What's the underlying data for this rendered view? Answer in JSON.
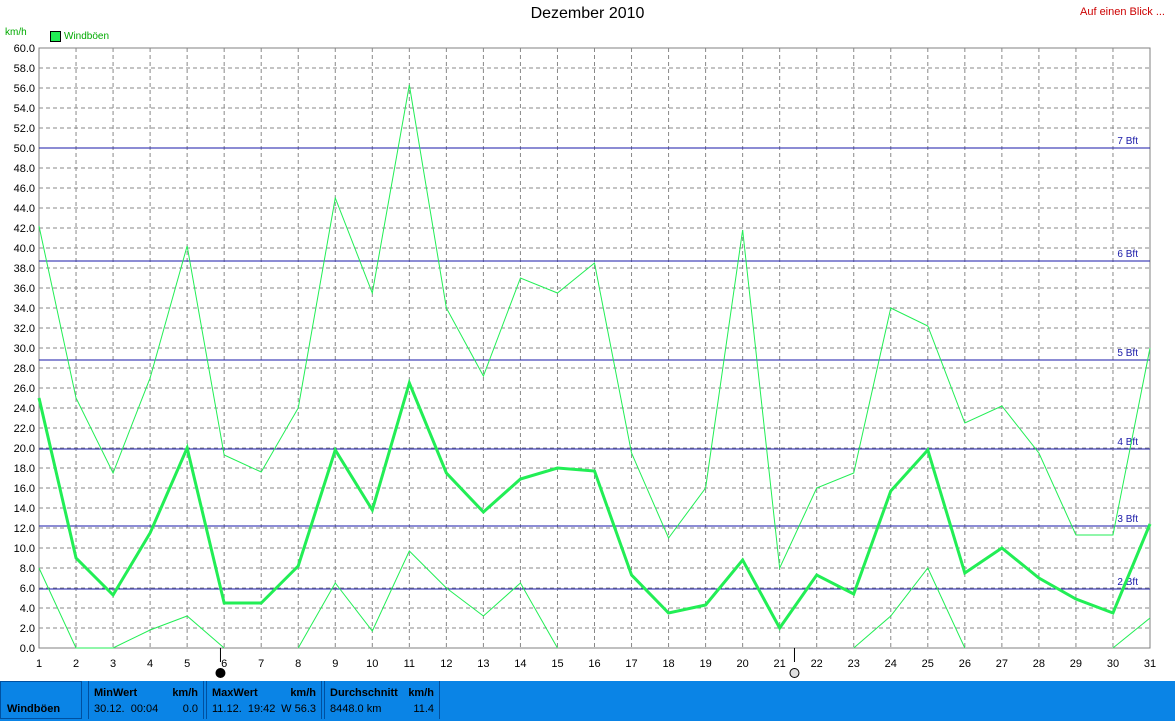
{
  "header": {
    "title": "Dezember 2010",
    "glance_link": "Auf einen Blick ...",
    "unit": "km/h",
    "legend": "Windböen"
  },
  "chart_data": {
    "type": "line",
    "title": "Dezember 2010",
    "ylabel": "km/h",
    "x": [
      1,
      2,
      3,
      4,
      5,
      6,
      7,
      8,
      9,
      10,
      11,
      12,
      13,
      14,
      15,
      16,
      17,
      18,
      19,
      20,
      21,
      22,
      23,
      24,
      25,
      26,
      27,
      28,
      29,
      30,
      31
    ],
    "xlim": [
      1,
      31
    ],
    "ylim": [
      0,
      60
    ],
    "ytick_step": 2,
    "grid": true,
    "legend_position": "top-left",
    "series": [
      {
        "name": "Windböen",
        "role": "max",
        "color": "#22ee55",
        "values": [
          42.2,
          25.0,
          17.5,
          27.0,
          40.2,
          19.3,
          17.6,
          24.0,
          45.0,
          35.5,
          56.3,
          34.0,
          27.2,
          37.0,
          35.5,
          38.5,
          19.5,
          11.0,
          16.0,
          41.8,
          8.0,
          16.0,
          17.5,
          34.0,
          32.2,
          22.5,
          24.2,
          19.5,
          11.3,
          11.3,
          30.0
        ]
      },
      {
        "name": "Windböen",
        "role": "average",
        "color": "#22ee55",
        "values": [
          25.0,
          9.0,
          5.3,
          11.5,
          20.0,
          4.5,
          4.5,
          8.2,
          19.8,
          13.8,
          26.5,
          17.5,
          13.6,
          16.9,
          18.0,
          17.7,
          7.3,
          3.5,
          4.3,
          8.8,
          2.0,
          7.3,
          5.4,
          15.7,
          19.8,
          7.5,
          10.0,
          7.0,
          4.9,
          3.5,
          12.4
        ]
      },
      {
        "name": "Windböen",
        "role": "min",
        "color": "#22ee55",
        "values": [
          8.0,
          0.0,
          0.0,
          1.8,
          3.2,
          0.0,
          null,
          0.0,
          6.5,
          1.7,
          9.7,
          6.0,
          3.2,
          6.5,
          0.0,
          null,
          null,
          null,
          null,
          null,
          null,
          null,
          0.0,
          3.2,
          8.0,
          0.0,
          null,
          null,
          null,
          0.0,
          3.0
        ]
      }
    ],
    "beaufort_lines": [
      {
        "label": "2 Bft",
        "value": 5.9
      },
      {
        "label": "3 Bft",
        "value": 12.2
      },
      {
        "label": "4 Bft",
        "value": 19.9
      },
      {
        "label": "5 Bft",
        "value": 28.8
      },
      {
        "label": "6 Bft",
        "value": 38.7
      },
      {
        "label": "7 Bft",
        "value": 50.0
      }
    ],
    "moon_phases": [
      {
        "day": 5.9,
        "phase": "new"
      },
      {
        "day": 21.4,
        "phase": "full"
      }
    ]
  },
  "stats": {
    "row_label": "Windböen",
    "min": {
      "label": "MinWert",
      "unit": "km/h",
      "when": "30.12.  00:04",
      "value": "0.0"
    },
    "max": {
      "label": "MaxWert",
      "unit": "km/h",
      "when": "11.12.  19:42",
      "dir_value": "W 56.3"
    },
    "avg": {
      "label": "Durchschnitt",
      "unit": "km/h",
      "distance": "8448.0 km",
      "value": "11.4"
    }
  }
}
